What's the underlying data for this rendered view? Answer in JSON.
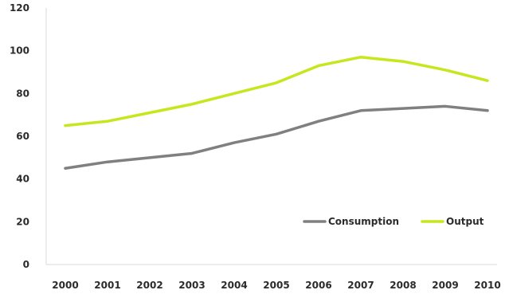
{
  "chart_data": {
    "type": "line",
    "title": "",
    "xlabel": "",
    "ylabel": "",
    "x": [
      "2000",
      "2001",
      "2002",
      "2003",
      "2004",
      "2005",
      "2006",
      "2007",
      "2008",
      "2009",
      "2010"
    ],
    "ylim": [
      0,
      120
    ],
    "yticks": [
      "0",
      "20",
      "40",
      "60",
      "80",
      "100",
      "120"
    ],
    "grid": false,
    "legend_position": "bottom-right",
    "series": [
      {
        "name": "Consumption",
        "color": "#808080",
        "values": [
          45,
          48,
          50,
          52,
          57,
          61,
          67,
          72,
          73,
          74,
          72
        ]
      },
      {
        "name": "Output",
        "color": "#c8e61e",
        "values": [
          65,
          67,
          71,
          75,
          80,
          85,
          93,
          97,
          95,
          91,
          86
        ]
      }
    ]
  }
}
